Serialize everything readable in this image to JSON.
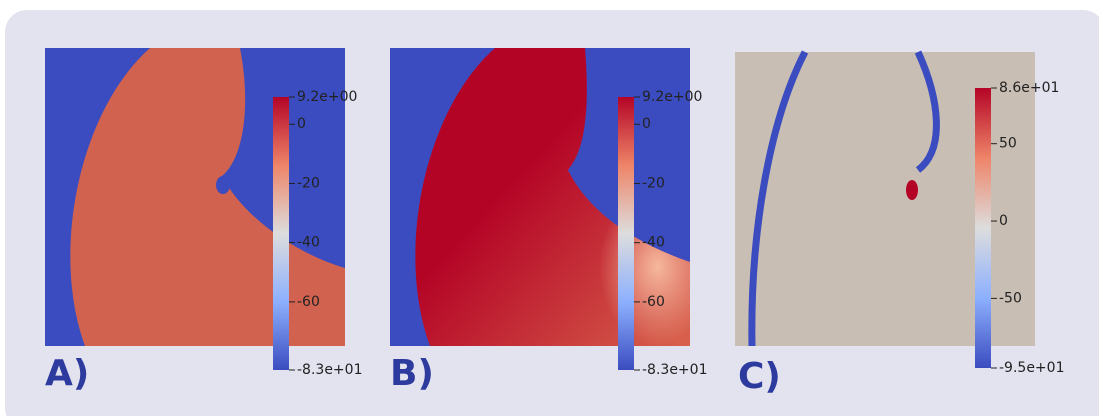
{
  "panels": [
    {
      "label": "A)",
      "colorbar": {
        "range": [
          -83,
          9.2
        ],
        "ticks": [
          {
            "value": 9.2,
            "label": "9.2e+00"
          },
          0,
          -20,
          -40,
          -60,
          {
            "value": -83,
            "label": "-8.3e+01"
          }
        ]
      }
    },
    {
      "label": "B)",
      "colorbar": {
        "range": [
          -83,
          9.2
        ],
        "ticks": [
          {
            "value": 9.2,
            "label": "9.2e+00"
          },
          0,
          -20,
          -40,
          -60,
          {
            "value": -83,
            "label": "-8.3e+01"
          }
        ]
      }
    },
    {
      "label": "C)",
      "colorbar": {
        "range": [
          -95,
          86
        ],
        "ticks": [
          {
            "value": 86,
            "label": "8.6e+01"
          },
          50,
          0,
          -50,
          {
            "value": -95,
            "label": "-9.5e+01"
          }
        ]
      }
    }
  ]
}
